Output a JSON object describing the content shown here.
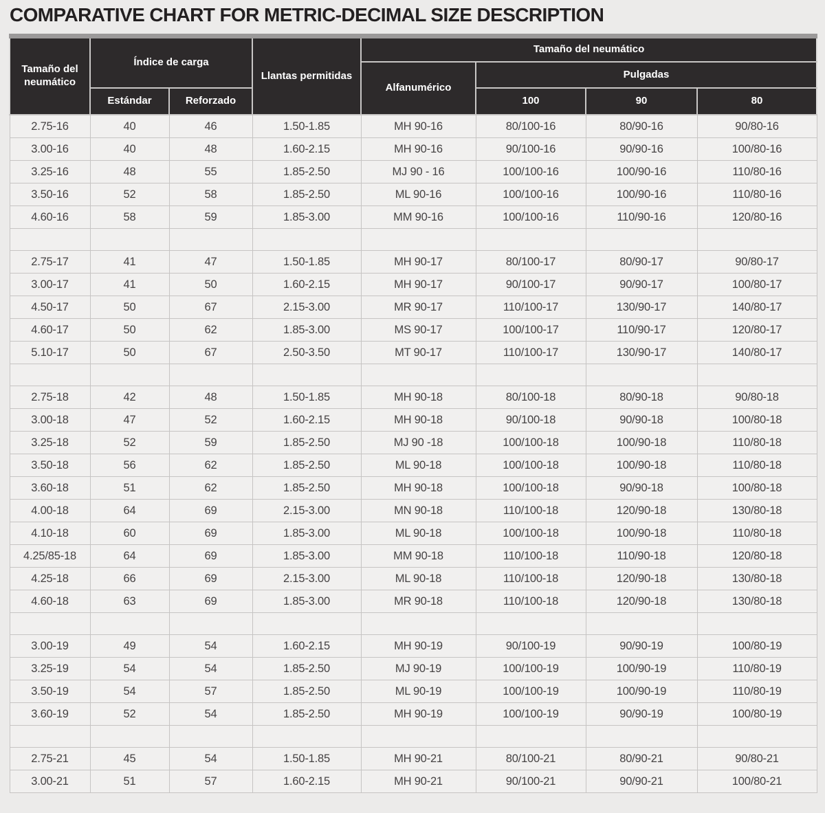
{
  "title": "COMPARATIVE CHART FOR METRIC-DECIMAL SIZE DESCRIPTION",
  "chart_data": {
    "type": "table",
    "title": "COMPARATIVE CHART FOR METRIC-DECIMAL SIZE DESCRIPTION",
    "header": {
      "tire_size": "Tamaño del neumático",
      "load_index": "Índice de carga",
      "standard": "Estándar",
      "reinforced": "Reforzado",
      "rims": "Llantas permitidas",
      "tire_size_group": "Tamaño del neumático",
      "alphanumeric": "Alfanumérico",
      "inches": "Pulgadas",
      "inches_100": "100",
      "inches_90": "90",
      "inches_80": "80"
    },
    "columns": [
      "Tamaño del neumático",
      "Índice de carga / Estándar",
      "Índice de carga / Reforzado",
      "Llantas permitidas",
      "Tamaño del neumático / Alfanumérico",
      "Tamaño del neumático / Pulgadas / 100",
      "Tamaño del neumático / Pulgadas / 90",
      "Tamaño del neumático / Pulgadas / 80"
    ],
    "sections": [
      {
        "rows": [
          [
            "2.75-16",
            "40",
            "46",
            "1.50-1.85",
            "MH 90-16",
            "80/100-16",
            "80/90-16",
            "90/80-16"
          ],
          [
            "3.00-16",
            "40",
            "48",
            "1.60-2.15",
            "MH 90-16",
            "90/100-16",
            "90/90-16",
            "100/80-16"
          ],
          [
            "3.25-16",
            "48",
            "55",
            "1.85-2.50",
            "MJ 90 - 16",
            "100/100-16",
            "100/90-16",
            "110/80-16"
          ],
          [
            "3.50-16",
            "52",
            "58",
            "1.85-2.50",
            "ML 90-16",
            "100/100-16",
            "100/90-16",
            "110/80-16"
          ],
          [
            "4.60-16",
            "58",
            "59",
            "1.85-3.00",
            "MM 90-16",
            "100/100-16",
            "110/90-16",
            "120/80-16"
          ]
        ]
      },
      {
        "rows": [
          [
            "2.75-17",
            "41",
            "47",
            "1.50-1.85",
            "MH 90-17",
            "80/100-17",
            "80/90-17",
            "90/80-17"
          ],
          [
            "3.00-17",
            "41",
            "50",
            "1.60-2.15",
            "MH 90-17",
            "90/100-17",
            "90/90-17",
            "100/80-17"
          ],
          [
            "4.50-17",
            "50",
            "67",
            "2.15-3.00",
            "MR 90-17",
            "110/100-17",
            "130/90-17",
            "140/80-17"
          ],
          [
            "4.60-17",
            "50",
            "62",
            "1.85-3.00",
            "MS 90-17",
            "100/100-17",
            "110/90-17",
            "120/80-17"
          ],
          [
            "5.10-17",
            "50",
            "67",
            "2.50-3.50",
            "MT 90-17",
            "110/100-17",
            "130/90-17",
            "140/80-17"
          ]
        ]
      },
      {
        "rows": [
          [
            "2.75-18",
            "42",
            "48",
            "1.50-1.85",
            "MH 90-18",
            "80/100-18",
            "80/90-18",
            "90/80-18"
          ],
          [
            "3.00-18",
            "47",
            "52",
            "1.60-2.15",
            "MH 90-18",
            "90/100-18",
            "90/90-18",
            "100/80-18"
          ],
          [
            "3.25-18",
            "52",
            "59",
            "1.85-2.50",
            "MJ 90 -18",
            "100/100-18",
            "100/90-18",
            "110/80-18"
          ],
          [
            "3.50-18",
            "56",
            "62",
            "1.85-2.50",
            "ML 90-18",
            "100/100-18",
            "100/90-18",
            "110/80-18"
          ],
          [
            "3.60-18",
            "51",
            "62",
            "1.85-2.50",
            "MH 90-18",
            "100/100-18",
            "90/90-18",
            "100/80-18"
          ],
          [
            "4.00-18",
            "64",
            "69",
            "2.15-3.00",
            "MN 90-18",
            "110/100-18",
            "120/90-18",
            "130/80-18"
          ],
          [
            "4.10-18",
            "60",
            "69",
            "1.85-3.00",
            "ML 90-18",
            "100/100-18",
            "100/90-18",
            "110/80-18"
          ],
          [
            "4.25/85-18",
            "64",
            "69",
            "1.85-3.00",
            "MM 90-18",
            "110/100-18",
            "110/90-18",
            "120/80-18"
          ],
          [
            "4.25-18",
            "66",
            "69",
            "2.15-3.00",
            "ML 90-18",
            "110/100-18",
            "120/90-18",
            "130/80-18"
          ],
          [
            "4.60-18",
            "63",
            "69",
            "1.85-3.00",
            "MR 90-18",
            "110/100-18",
            "120/90-18",
            "130/80-18"
          ]
        ]
      },
      {
        "rows": [
          [
            "3.00-19",
            "49",
            "54",
            "1.60-2.15",
            "MH 90-19",
            "90/100-19",
            "90/90-19",
            "100/80-19"
          ],
          [
            "3.25-19",
            "54",
            "54",
            "1.85-2.50",
            "MJ 90-19",
            "100/100-19",
            "100/90-19",
            "110/80-19"
          ],
          [
            "3.50-19",
            "54",
            "57",
            "1.85-2.50",
            "ML 90-19",
            "100/100-19",
            "100/90-19",
            "110/80-19"
          ],
          [
            "3.60-19",
            "52",
            "54",
            "1.85-2.50",
            "MH 90-19",
            "100/100-19",
            "90/90-19",
            "100/80-19"
          ]
        ]
      },
      {
        "rows": [
          [
            "2.75-21",
            "45",
            "54",
            "1.50-1.85",
            "MH 90-21",
            "80/100-21",
            "80/90-21",
            "90/80-21"
          ],
          [
            "3.00-21",
            "51",
            "57",
            "1.60-2.15",
            "MH 90-21",
            "90/100-21",
            "90/90-21",
            "100/80-21"
          ]
        ]
      }
    ],
    "layout": {
      "separator_rows_between_sections": true,
      "grid": true
    }
  },
  "colors": {
    "page_background": "#ecebea",
    "title_text": "#232021",
    "header_background": "#2d2a2b",
    "header_text": "#ffffff",
    "top_strip": "#9b9999",
    "cell_background": "#f1f0ef",
    "grid_line": "#c6c4c3",
    "cell_text": "#454243"
  }
}
